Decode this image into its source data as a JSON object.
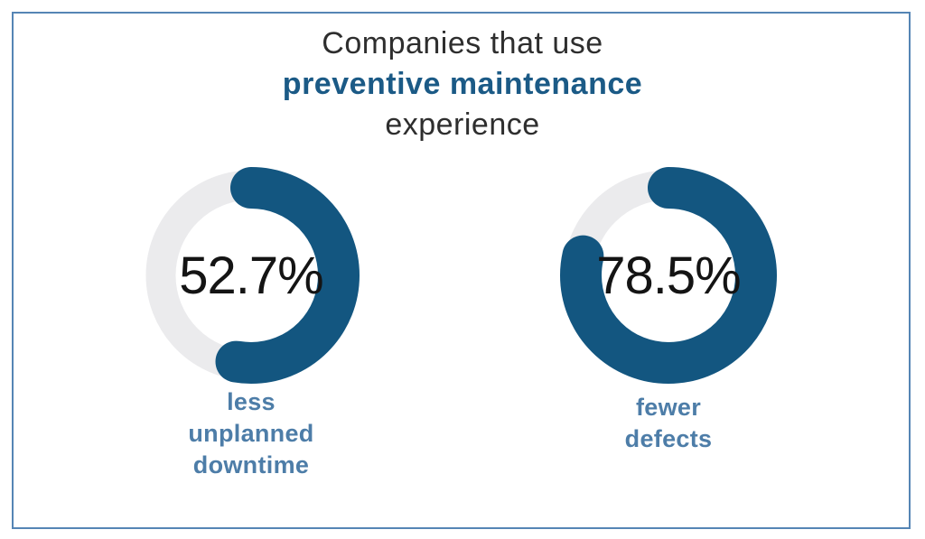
{
  "title": {
    "line1": "Companies that use",
    "line2": "preventive maintenance",
    "line3": "experience"
  },
  "colors": {
    "arc_blue": "#135680",
    "track_grey": "#ebebed",
    "title_text": "#2e2e2e",
    "title_highlight": "#1b5a86",
    "label_blue": "#4d7da8",
    "border_blue": "#5585b5",
    "value_text": "#141414",
    "background": "#ffffff"
  },
  "chart_data": {
    "type": "pie",
    "subtype": "donut-gauge-pair",
    "title": "Companies that use preventive maintenance experience",
    "legend": "none",
    "gauges": [
      {
        "value": 52.7,
        "value_label": "52.7%",
        "caption": "less unplanned downtime",
        "caption_lines": [
          "less",
          "unplanned",
          "downtime"
        ],
        "start_angle_deg": 0,
        "direction": "clockwise"
      },
      {
        "value": 78.5,
        "value_label": "78.5%",
        "caption": "fewer defects",
        "caption_lines": [
          "fewer",
          "defects"
        ],
        "start_angle_deg": 0,
        "direction": "clockwise"
      }
    ]
  }
}
